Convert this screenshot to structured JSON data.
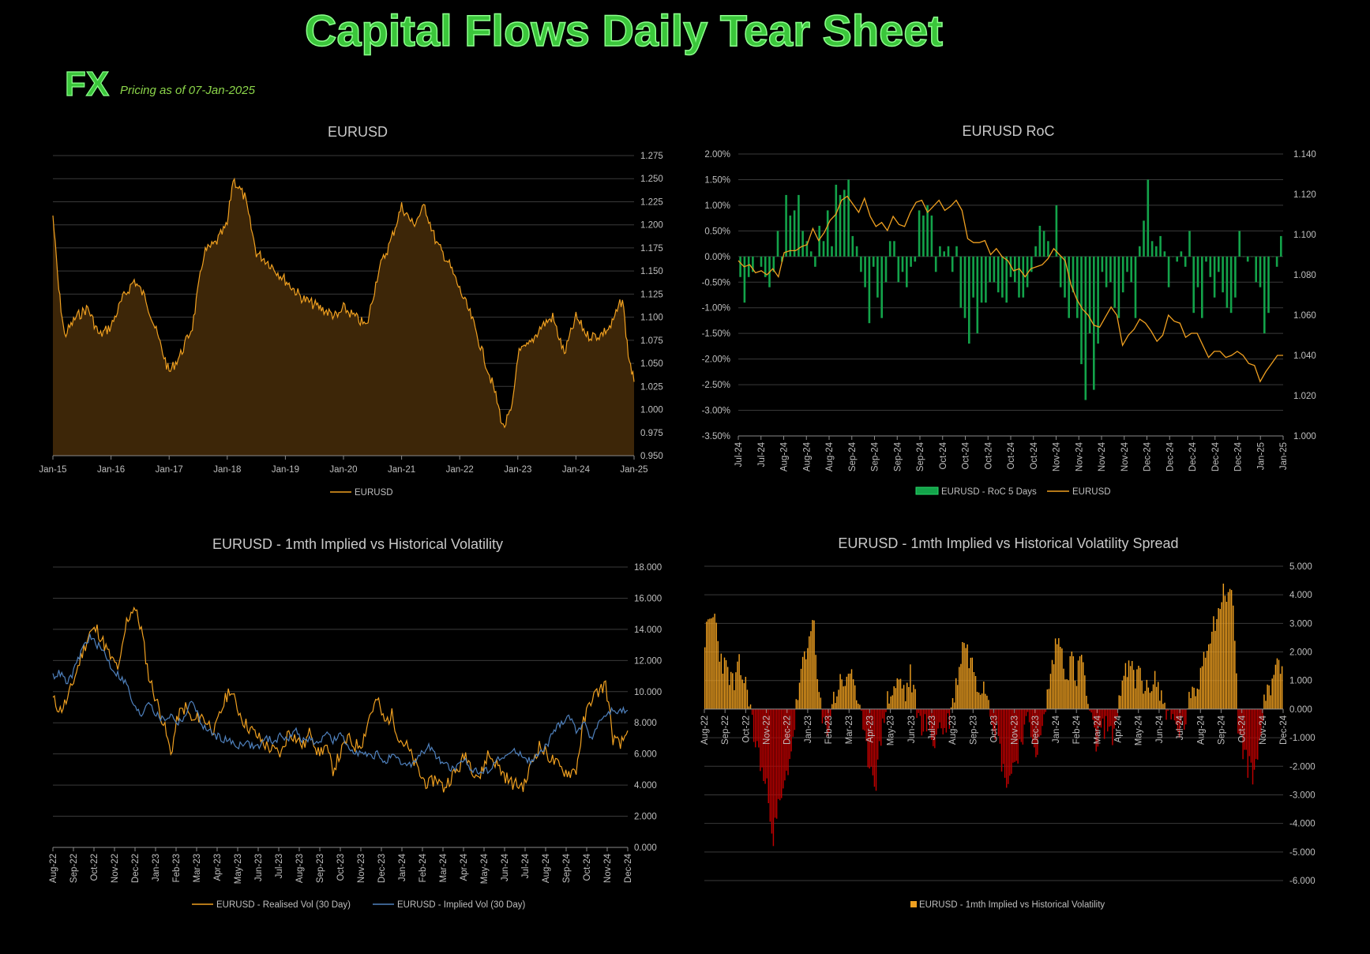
{
  "header": {
    "title": "Capital Flows Daily Tear Sheet",
    "section": "FX",
    "pricing": "Pricing as of 07-Jan-2025"
  },
  "colors": {
    "orange": "#f0a020",
    "green": "#13a34a",
    "red": "#c00000",
    "blue": "#4f81bd",
    "title_green": "#3bc63b"
  },
  "chart_data": [
    {
      "type": "area",
      "title": "EURUSD",
      "x_ticks": [
        "Jan-15",
        "Jan-16",
        "Jan-17",
        "Jan-18",
        "Jan-19",
        "Jan-20",
        "Jan-21",
        "Jan-22",
        "Jan-23",
        "Jan-24",
        "Jan-25"
      ],
      "y_ticks": [
        "1.275",
        "1.250",
        "1.225",
        "1.200",
        "1.175",
        "1.150",
        "1.125",
        "1.100",
        "1.075",
        "1.050",
        "1.025",
        "1.000",
        "0.975",
        "0.950"
      ],
      "ylim": [
        0.95,
        1.275
      ],
      "legend": [
        "EURUSD"
      ],
      "series": [
        {
          "name": "EURUSD",
          "x": [
            2015.0,
            2015.1,
            2015.2,
            2015.4,
            2015.6,
            2015.8,
            2016.0,
            2016.2,
            2016.4,
            2016.6,
            2016.8,
            2017.0,
            2017.2,
            2017.4,
            2017.6,
            2017.8,
            2018.0,
            2018.1,
            2018.3,
            2018.5,
            2018.7,
            2019.0,
            2019.3,
            2019.6,
            2019.9,
            2020.0,
            2020.2,
            2020.4,
            2020.6,
            2020.8,
            2021.0,
            2021.2,
            2021.4,
            2021.6,
            2021.8,
            2022.0,
            2022.2,
            2022.4,
            2022.6,
            2022.75,
            2022.9,
            2023.0,
            2023.2,
            2023.4,
            2023.6,
            2023.8,
            2024.0,
            2024.2,
            2024.4,
            2024.6,
            2024.8,
            2024.9,
            2025.0
          ],
          "values": [
            1.21,
            1.13,
            1.08,
            1.1,
            1.11,
            1.08,
            1.09,
            1.12,
            1.14,
            1.12,
            1.08,
            1.04,
            1.06,
            1.09,
            1.17,
            1.18,
            1.2,
            1.25,
            1.23,
            1.17,
            1.16,
            1.14,
            1.12,
            1.11,
            1.1,
            1.11,
            1.1,
            1.09,
            1.15,
            1.18,
            1.22,
            1.2,
            1.22,
            1.18,
            1.16,
            1.13,
            1.1,
            1.06,
            1.02,
            0.98,
            1.0,
            1.06,
            1.07,
            1.09,
            1.1,
            1.06,
            1.1,
            1.08,
            1.08,
            1.09,
            1.12,
            1.06,
            1.03
          ]
        }
      ]
    },
    {
      "type": "bar",
      "title": "EURUSD RoC",
      "x_ticks": [
        "Jul-24",
        "Jul-24",
        "Aug-24",
        "Aug-24",
        "Aug-24",
        "Sep-24",
        "Sep-24",
        "Sep-24",
        "Sep-24",
        "Oct-24",
        "Oct-24",
        "Oct-24",
        "Oct-24",
        "Oct-24",
        "Nov-24",
        "Nov-24",
        "Nov-24",
        "Nov-24",
        "Dec-24",
        "Dec-24",
        "Dec-24",
        "Dec-24",
        "Dec-24",
        "Jan-25",
        "Jan-25"
      ],
      "y_ticks_left": [
        "2.00%",
        "1.50%",
        "1.00%",
        "0.50%",
        "0.00%",
        "-0.50%",
        "-1.00%",
        "-1.50%",
        "-2.00%",
        "-2.50%",
        "-3.00%",
        "-3.50%"
      ],
      "y_ticks_right": [
        "1.140",
        "1.120",
        "1.100",
        "1.080",
        "1.060",
        "1.040",
        "1.020",
        "1.000"
      ],
      "ylim_left": [
        -3.5,
        2.0
      ],
      "ylim_right": [
        1.0,
        1.14
      ],
      "legend": [
        "EURUSD - RoC 5 Days",
        "EURUSD"
      ],
      "series": [
        {
          "name": "EURUSD - RoC 5 Days",
          "values": [
            -0.4,
            -0.9,
            -0.4,
            -0.3,
            0.0,
            -0.2,
            -0.4,
            -0.6,
            -0.3,
            0.5,
            -0.1,
            1.2,
            0.8,
            0.9,
            1.2,
            0.5,
            0.3,
            0.1,
            -0.2,
            0.6,
            0.3,
            0.9,
            0.2,
            1.4,
            1.2,
            1.3,
            1.5,
            0.4,
            0.2,
            -0.3,
            -0.6,
            -1.3,
            -0.2,
            -0.8,
            -1.2,
            -0.5,
            0.3,
            0.3,
            -0.5,
            -0.3,
            -0.6,
            -0.2,
            -0.1,
            0.9,
            0.8,
            1.0,
            0.8,
            -0.3,
            0.2,
            0.1,
            0.2,
            -0.3,
            0.2,
            -1.0,
            -1.2,
            -1.7,
            -0.8,
            -1.5,
            -0.9,
            -0.9,
            -0.5,
            -0.5,
            -0.7,
            -0.8,
            -0.9,
            -0.4,
            -0.5,
            -0.8,
            -0.8,
            -0.6,
            -0.3,
            0.2,
            0.6,
            0.5,
            0.3,
            0.0,
            1.0,
            -0.6,
            -0.8,
            -1.2,
            -0.7,
            -1.2,
            -2.1,
            -2.8,
            -1.5,
            -2.6,
            -1.7,
            -0.3,
            -0.6,
            -0.5,
            -1.0,
            -1.2,
            -0.7,
            -0.3,
            -0.5,
            -1.2,
            0.2,
            0.7,
            1.5,
            0.3,
            0.2,
            0.4,
            0.1,
            -0.6,
            0.0,
            -0.1,
            0.1,
            -0.2,
            0.5,
            -1.1,
            -0.6,
            -1.2,
            -0.1,
            -0.4,
            -0.8,
            -0.3,
            -0.7,
            -1.0,
            -1.1,
            -0.8,
            0.5,
            0.0,
            -0.1,
            0.0,
            -0.5,
            -0.6,
            -1.5,
            -1.1,
            0.0,
            -0.2,
            0.4
          ]
        },
        {
          "name": "EURUSD",
          "values": [
            1.087,
            1.084,
            1.085,
            1.081,
            1.082,
            1.08,
            1.083,
            1.079,
            1.091,
            1.092,
            1.092,
            1.094,
            1.095,
            1.103,
            1.097,
            1.101,
            1.107,
            1.11,
            1.117,
            1.119,
            1.115,
            1.111,
            1.118,
            1.109,
            1.104,
            1.106,
            1.102,
            1.109,
            1.105,
            1.104,
            1.111,
            1.116,
            1.117,
            1.111,
            1.114,
            1.117,
            1.112,
            1.114,
            1.117,
            1.112,
            1.098,
            1.096,
            1.096,
            1.097,
            1.09,
            1.093,
            1.089,
            1.087,
            1.082,
            1.083,
            1.079,
            1.083,
            1.084,
            1.085,
            1.088,
            1.093,
            1.09,
            1.087,
            1.075,
            1.068,
            1.063,
            1.06,
            1.055,
            1.054,
            1.059,
            1.064,
            1.06,
            1.045,
            1.05,
            1.053,
            1.058,
            1.056,
            1.052,
            1.047,
            1.05,
            1.06,
            1.057,
            1.056,
            1.049,
            1.051,
            1.051,
            1.045,
            1.039,
            1.042,
            1.042,
            1.039,
            1.04,
            1.042,
            1.04,
            1.036,
            1.035,
            1.027,
            1.032,
            1.036,
            1.04,
            1.04
          ]
        }
      ]
    },
    {
      "type": "line",
      "title": "EURUSD - 1mth Implied vs Historical Volatility",
      "x_ticks": [
        "Aug-22",
        "Sep-22",
        "Oct-22",
        "Nov-22",
        "Dec-22",
        "Jan-23",
        "Feb-23",
        "Mar-23",
        "Apr-23",
        "May-23",
        "Jun-23",
        "Jul-23",
        "Aug-23",
        "Sep-23",
        "Oct-23",
        "Nov-23",
        "Dec-23",
        "Jan-24",
        "Feb-24",
        "Mar-24",
        "Apr-24",
        "May-24",
        "Jun-24",
        "Jul-24",
        "Aug-24",
        "Sep-24",
        "Oct-24",
        "Nov-24",
        "Dec-24"
      ],
      "y_ticks": [
        "18.000",
        "16.000",
        "14.000",
        "12.000",
        "10.000",
        "8.000",
        "6.000",
        "4.000",
        "2.000",
        "0.000"
      ],
      "ylim": [
        0,
        18
      ],
      "legend": [
        "EURUSD - Realised Vol (30 Day)",
        "EURUSD - Implied Vol (30 Day)"
      ],
      "series": [
        {
          "name": "EURUSD - Realised Vol (30 Day)",
          "values": [
            9.5,
            8.8,
            9.5,
            11.0,
            12.5,
            13.8,
            14.0,
            13.0,
            12.0,
            11.5,
            14.5,
            15.5,
            14.0,
            11.0,
            9.5,
            8.0,
            6.0,
            8.5,
            9.0,
            8.0,
            8.5,
            8.0,
            7.5,
            9.0,
            10.2,
            9.0,
            8.0,
            7.5,
            7.0,
            6.5,
            6.2,
            6.0,
            7.5,
            7.0,
            6.5,
            7.5,
            6.0,
            6.5,
            5.0,
            6.0,
            7.0,
            6.5,
            6.8,
            8.5,
            9.5,
            8.0,
            8.5,
            7.0,
            6.5,
            5.5,
            4.5,
            4.0,
            4.5,
            3.8,
            4.5,
            5.0,
            6.0,
            5.0,
            4.5,
            6.0,
            5.5,
            4.8,
            4.2,
            4.0,
            4.0,
            5.5,
            6.5,
            6.0,
            5.5,
            5.0,
            4.8,
            5.0,
            8.0,
            9.5,
            10.0,
            10.5,
            7.0,
            6.5,
            7.5
          ]
        },
        {
          "name": "EURUSD - Implied Vol (30 Day)",
          "values": [
            11.0,
            11.2,
            10.5,
            11.5,
            12.8,
            13.5,
            13.0,
            12.5,
            11.5,
            11.0,
            10.5,
            9.0,
            8.5,
            9.5,
            8.5,
            8.2,
            8.5,
            8.0,
            8.5,
            9.5,
            8.0,
            7.5,
            7.2,
            7.0,
            6.8,
            6.5,
            6.8,
            6.5,
            6.5,
            7.0,
            6.8,
            7.2,
            7.0,
            7.5,
            6.8,
            7.0,
            6.5,
            7.5,
            6.8,
            7.2,
            6.5,
            6.2,
            6.0,
            5.8,
            6.0,
            5.5,
            5.8,
            5.5,
            5.2,
            5.5,
            6.0,
            6.5,
            5.8,
            5.5,
            5.0,
            5.2,
            5.5,
            5.0,
            4.8,
            5.0,
            5.5,
            5.8,
            6.0,
            6.2,
            5.8,
            5.5,
            6.0,
            6.5,
            7.5,
            8.0,
            8.5,
            7.5,
            8.0,
            7.0,
            8.0,
            8.5,
            8.8,
            8.7,
            8.8
          ]
        }
      ]
    },
    {
      "type": "bar",
      "title": "EURUSD - 1mth Implied vs Historical Volatility Spread",
      "x_ticks": [
        "Aug-22",
        "Sep-22",
        "Oct-22",
        "Nov-22",
        "Dec-22",
        "Jan-23",
        "Feb-23",
        "Mar-23",
        "Apr-23",
        "May-23",
        "Jun-23",
        "Jul-23",
        "Aug-23",
        "Sep-23",
        "Oct-23",
        "Nov-23",
        "Dec-23",
        "Jan-24",
        "Feb-24",
        "Mar-24",
        "Apr-24",
        "May-24",
        "Jun-24",
        "Jul-24",
        "Aug-24",
        "Sep-24",
        "Oct-24",
        "Nov-24",
        "Dec-24"
      ],
      "y_ticks": [
        "5.000",
        "4.000",
        "3.000",
        "2.000",
        "1.000",
        "0.000",
        "-1.000",
        "-2.000",
        "-3.000",
        "-4.000",
        "-5.000",
        "-6.000"
      ],
      "ylim": [
        -6,
        5
      ],
      "legend": [
        "EURUSD - 1mth Implied vs Historical Volatility"
      ],
      "series": [
        {
          "name": "EURUSD - 1mth Implied vs Historical Volatility",
          "values": [
            2.5,
            3.0,
            3.3,
            2.0,
            1.5,
            1.2,
            0.8,
            1.5,
            1.0,
            0.5,
            -1.0,
            -1.5,
            -2.5,
            -3.0,
            -4.5,
            -3.5,
            -3.0,
            -2.0,
            -1.0,
            0.5,
            1.5,
            2.0,
            3.5,
            1.0,
            -0.5,
            -0.8,
            0.2,
            0.6,
            1.2,
            0.8,
            1.5,
            0.5,
            -0.5,
            -1.5,
            -2.0,
            -2.5,
            -1.0,
            0.2,
            0.5,
            0.8,
            1.0,
            0.5,
            1.2,
            0.3,
            -0.5,
            -0.5,
            -0.8,
            -1.2,
            -0.5,
            -0.8,
            -0.3,
            0.5,
            1.5,
            2.5,
            1.8,
            1.5,
            0.8,
            1.0,
            0.5,
            -0.5,
            -1.0,
            -2.2,
            -2.5,
            -2.0,
            -1.5,
            -0.8,
            -0.5,
            -1.0,
            -1.5,
            -0.8,
            0.5,
            1.5,
            2.5,
            2.0,
            1.2,
            1.8,
            1.0,
            2.0,
            0.5,
            -0.5,
            -1.2,
            -0.8,
            -0.5,
            -1.0,
            -0.5,
            0.8,
            1.2,
            1.5,
            1.0,
            1.5,
            0.5,
            0.8,
            1.2,
            0.5,
            0.2,
            -0.3,
            -0.5,
            -0.8,
            -0.5,
            0.2,
            0.5,
            1.0,
            2.0,
            2.5,
            3.0,
            3.5,
            4.0,
            4.2,
            3.8,
            -0.5,
            -1.5,
            -2.0,
            -2.2,
            -1.8,
            0.0,
            0.5,
            1.0,
            1.8,
            1.5
          ]
        }
      ]
    }
  ]
}
